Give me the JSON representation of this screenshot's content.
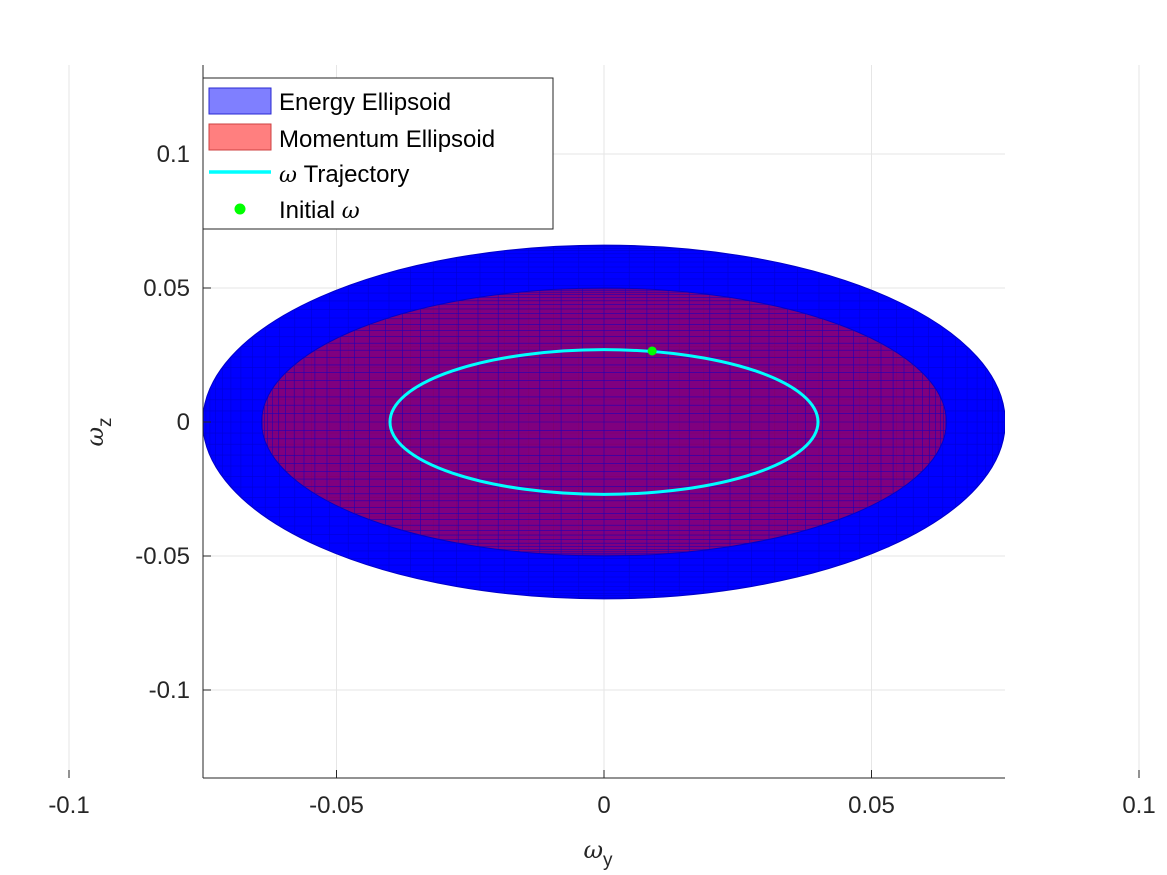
{
  "chart_data": {
    "type": "line",
    "title": "",
    "xlabel": {
      "symbol": "ω",
      "subscript": "y"
    },
    "ylabel": {
      "symbol": "ω",
      "subscript": "z"
    },
    "xlim": [
      -0.15,
      0.15
    ],
    "ylim": [
      -0.133,
      0.133
    ],
    "xticks": [
      -0.1,
      -0.05,
      0,
      0.05,
      0.1
    ],
    "xtick_labels": [
      "-0.1",
      "-0.05",
      "0",
      "0.05",
      "0.1"
    ],
    "yticks": [
      -0.1,
      -0.05,
      0,
      0.05,
      0.1
    ],
    "ytick_labels": [
      "-0.1",
      "-0.05",
      "0",
      "0.05",
      "0.1"
    ],
    "grid": true,
    "legend_placement": "top-left",
    "colors": {
      "energy_fill": "#0000ff",
      "energy_mesh": "#0000c8",
      "momentum_fill": "#ff0000",
      "trajectory": "#00ffff",
      "initial_point": "#00ff00",
      "grid": "#e6e6e6",
      "axis": "#262626"
    },
    "series": [
      {
        "name": "Energy Ellipsoid",
        "kind": "filled-ellipse",
        "center": [
          0,
          0
        ],
        "semi_axes": [
          0.075,
          0.066
        ]
      },
      {
        "name": "Momentum Ellipsoid",
        "kind": "filled-ellipse",
        "center": [
          0,
          0
        ],
        "semi_axes": [
          0.064,
          0.05
        ]
      },
      {
        "name": "ω Trajectory",
        "kind": "ellipse-line",
        "center": [
          0,
          0
        ],
        "semi_axes": [
          0.04,
          0.027
        ]
      },
      {
        "name": "Initial ω",
        "kind": "point",
        "x": 0.009,
        "y": 0.0265
      }
    ],
    "legend": [
      {
        "text": "Energy Ellipsoid"
      },
      {
        "text": "Momentum Ellipsoid"
      },
      {
        "prefix": "ω",
        "text": " Trajectory"
      },
      {
        "text": "Initial ",
        "suffix": "ω"
      }
    ]
  }
}
